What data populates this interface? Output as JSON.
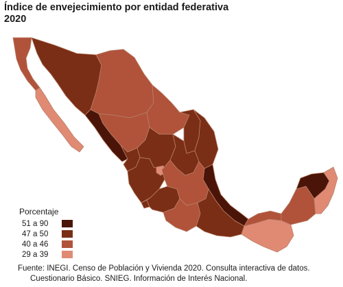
{
  "title": {
    "line1": "Índice de envejecimiento  por entidad federativa",
    "line2": "2020"
  },
  "legend": {
    "title": "Porcentaje",
    "items": [
      {
        "label": "51 a 90",
        "color": "#4a1508"
      },
      {
        "label": "47 a 50",
        "color": "#7a2e15"
      },
      {
        "label": "40 a 46",
        "color": "#b0533a"
      },
      {
        "label": "29 a 39",
        "color": "#e08a74"
      }
    ]
  },
  "source": {
    "line1": "Fuente: INEGI. Censo de Población y Vivienda 2020. Consulta interactiva de datos.",
    "line2": "Cuestionario Básico. SNIEG. Información de Interés Nacional."
  },
  "map_data": {
    "colors": {
      "c1": "#4a1508",
      "c2": "#7a2e15",
      "c3": "#b0533a",
      "c4": "#e08a74"
    },
    "states": [
      {
        "name": "Baja California",
        "class": "c3"
      },
      {
        "name": "Baja California Sur",
        "class": "c4"
      },
      {
        "name": "Sonora",
        "class": "c2"
      },
      {
        "name": "Chihuahua",
        "class": "c3"
      },
      {
        "name": "Coahuila",
        "class": "c3"
      },
      {
        "name": "Nuevo León",
        "class": "c2"
      },
      {
        "name": "Tamaulipas",
        "class": "c2"
      },
      {
        "name": "Sinaloa",
        "class": "c1"
      },
      {
        "name": "Durango",
        "class": "c3"
      },
      {
        "name": "Zacatecas",
        "class": "c2"
      },
      {
        "name": "San Luis Potosí",
        "class": "c2"
      },
      {
        "name": "Nayarit",
        "class": "c2"
      },
      {
        "name": "Jalisco",
        "class": "c2"
      },
      {
        "name": "Aguascalientes",
        "class": "c4"
      },
      {
        "name": "Veracruz",
        "class": "c1"
      },
      {
        "name": "Colima",
        "class": "c2"
      },
      {
        "name": "Michoacán",
        "class": "c2"
      },
      {
        "name": "Centro",
        "class": "c3"
      },
      {
        "name": "Guerrero",
        "class": "c3"
      },
      {
        "name": "Oaxaca",
        "class": "c2"
      },
      {
        "name": "Chiapas",
        "class": "c4"
      },
      {
        "name": "Tabasco",
        "class": "c3"
      },
      {
        "name": "Campeche",
        "class": "c3"
      },
      {
        "name": "Yucatán",
        "class": "c1"
      },
      {
        "name": "Quintana Roo",
        "class": "c4"
      }
    ]
  }
}
